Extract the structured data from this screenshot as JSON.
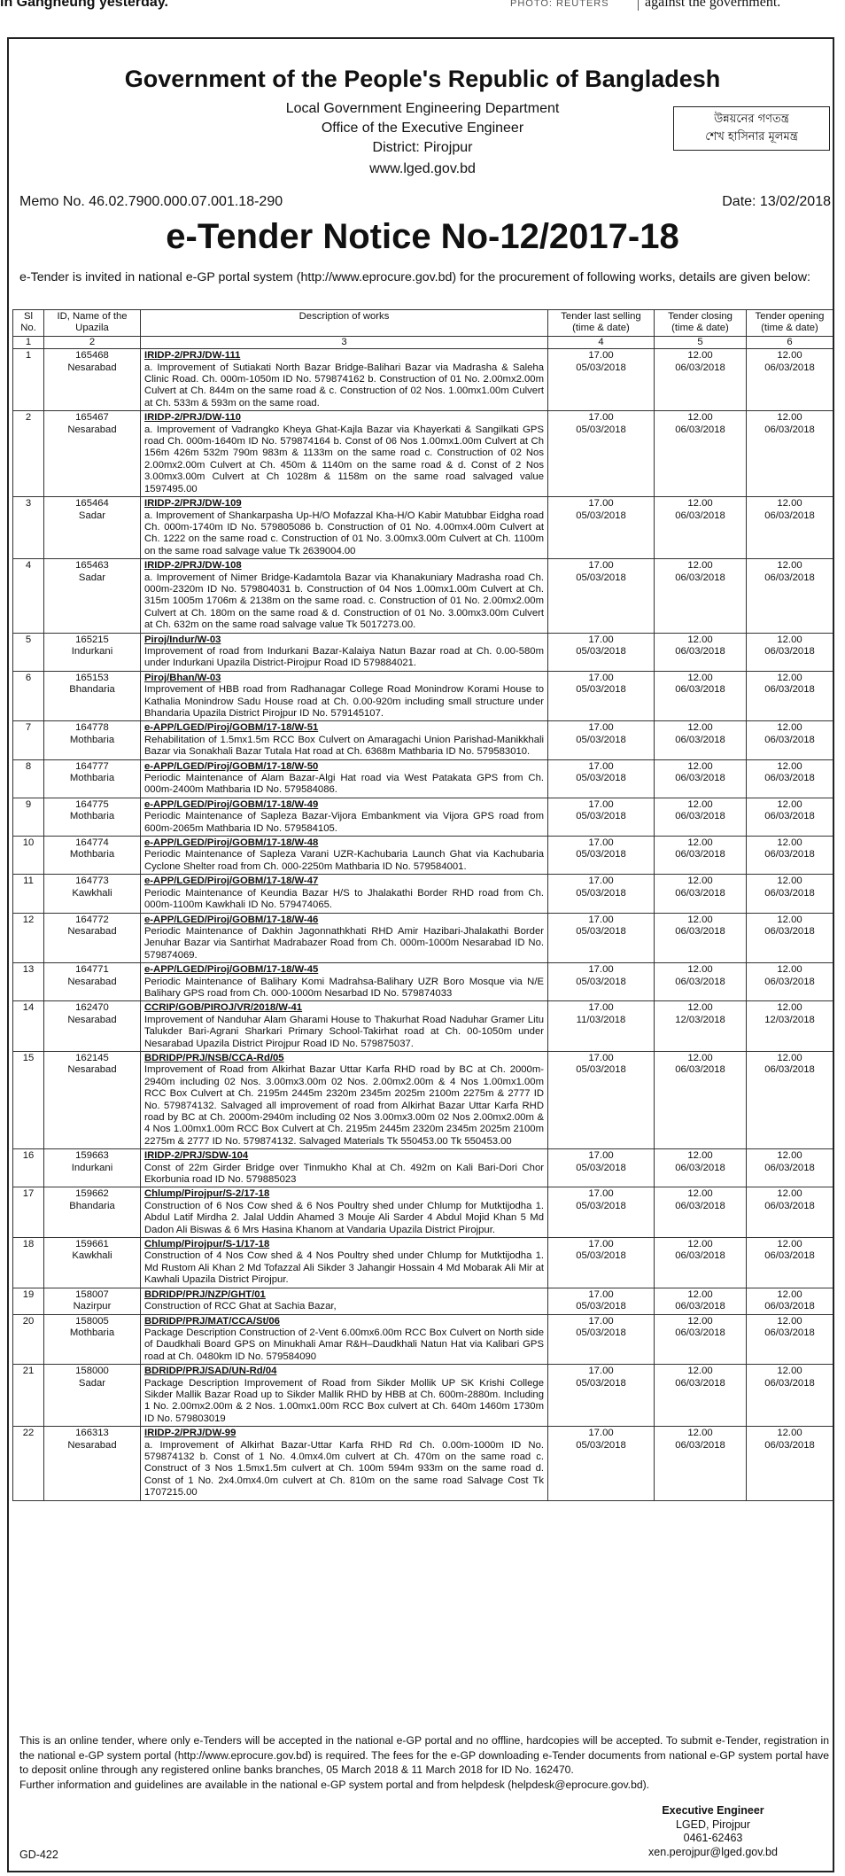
{
  "top_strip": {
    "left": "in Gangneung yesterday.",
    "photo_credit": "PHOTO: REUTERS",
    "right": "against the government."
  },
  "header": {
    "title": "Government of the People's Republic of Bangladesh",
    "lines": [
      "Local Government Engineering Department",
      "Office of the Executive Engineer",
      "District: Pirojpur",
      "www.lged.gov.bd"
    ],
    "slogan": [
      "উন্নয়নের গণতন্ত্র",
      "শেখ হাসিনার মূলমন্ত্র"
    ],
    "memo": "Memo No. 46.02.7900.000.07.001.18-290",
    "date": "Date: 13/02/2018",
    "notice_title": "e-Tender Notice No-12/2017-18",
    "intro": "e-Tender is invited in national e-GP portal system (http://www.eprocure.gov.bd) for the procurement of following works, details are given below:"
  },
  "table": {
    "columns": [
      "Sl No.",
      "ID, Name of the Upazila",
      "Description of works",
      "Tender last selling (time & date)",
      "Tender closing (time & date)",
      "Tender opening (time & date)"
    ],
    "column_numbers": [
      "1",
      "2",
      "3",
      "4",
      "5",
      "6"
    ],
    "rows": [
      {
        "sl": "1",
        "id": "165468",
        "upazila": "Nesarabad",
        "code": "IRIDP-2/PRJ/DW-111",
        "description": "a. Improvement of Sutiakati North Bazar Bridge-Balihari Bazar via Madrasha & Saleha Clinic Road. Ch. 000m-1050m ID No. 579874162 b. Construction of 01 No. 2.00mx2.00m Culvert at Ch. 844m on the same road & c. Construction of 02 Nos. 1.00mx1.00m Culvert at Ch. 533m & 593m on the same road.",
        "selling": [
          "17.00",
          "05/03/2018"
        ],
        "closing": [
          "12.00",
          "06/03/2018"
        ],
        "opening": [
          "12.00",
          "06/03/2018"
        ]
      },
      {
        "sl": "2",
        "id": "165467",
        "upazila": "Nesarabad",
        "code": "IRIDP-2/PRJ/DW-110",
        "description": "a. Improvement of Vadrangko Kheya Ghat-Kajla Bazar via Khayerkati & Sangilkati GPS road Ch. 000m-1640m ID No. 579874164 b. Const of 06 Nos 1.00mx1.00m Culvert at Ch 156m 426m 532m 790m 983m & 1133m on the same road c. Construction of 02 Nos 2.00mx2.00m Culvert at Ch. 450m & 1140m on the same road & d. Const of 2 Nos 3.00mx3.00m Culvert at Ch 1028m & 1158m on the same road salvaged value 1597495.00",
        "selling": [
          "17.00",
          "05/03/2018"
        ],
        "closing": [
          "12.00",
          "06/03/2018"
        ],
        "opening": [
          "12.00",
          "06/03/2018"
        ]
      },
      {
        "sl": "3",
        "id": "165464",
        "upazila": "Sadar",
        "code": "IRIDP-2/PRJ/DW-109",
        "description": "a. Improvement of Shankarpasha Up-H/O Mofazzal Kha-H/O Kabir Matubbar Eidgha road Ch. 000m-1740m ID No. 579805086 b. Construction of 01 No. 4.00mx4.00m Culvert at Ch. 1222 on the same road c. Construction of 01 No. 3.00mx3.00m Culvert at Ch. 1100m on the same road salvage value Tk 2639004.00",
        "selling": [
          "17.00",
          "05/03/2018"
        ],
        "closing": [
          "12.00",
          "06/03/2018"
        ],
        "opening": [
          "12.00",
          "06/03/2018"
        ]
      },
      {
        "sl": "4",
        "id": "165463",
        "upazila": "Sadar",
        "code": "IRIDP-2/PRJ/DW-108",
        "description": "a. Improvement of Nimer Bridge-Kadamtola Bazar via Khanakuniary Madrasha road Ch. 000m-2320m ID No. 579804031 b. Construction of 04 Nos 1.00mx1.00m Culvert at Ch. 315m 1005m 1706m & 2138m on the same road. c. Construction of 01 No. 2.00mx2.00m Culvert at Ch. 180m on the same road & d. Construction of 01 No. 3.00mx3.00m Culvert at Ch. 632m on the same road salvage value Tk 5017273.00.",
        "selling": [
          "17.00",
          "05/03/2018"
        ],
        "closing": [
          "12.00",
          "06/03/2018"
        ],
        "opening": [
          "12.00",
          "06/03/2018"
        ]
      },
      {
        "sl": "5",
        "id": "165215",
        "upazila": "Indurkani",
        "code": "Piroj/Indur/W-03",
        "description": "Improvement of road from Indurkani Bazar-Kalaiya Natun Bazar road at Ch. 0.00-580m under Indurkani Upazila District-Pirojpur Road ID 579884021.",
        "selling": [
          "17.00",
          "05/03/2018"
        ],
        "closing": [
          "12.00",
          "06/03/2018"
        ],
        "opening": [
          "12.00",
          "06/03/2018"
        ]
      },
      {
        "sl": "6",
        "id": "165153",
        "upazila": "Bhandaria",
        "code": "Piroj/Bhan/W-03",
        "description": "Improvement of HBB road from Radhanagar College Road Monindrow Korami House to Kathalia Monindrow Sadu House road at Ch. 0.00-920m including small structure under Bhandaria Upazila District Pirojpur ID No. 579145107.",
        "selling": [
          "17.00",
          "05/03/2018"
        ],
        "closing": [
          "12.00",
          "06/03/2018"
        ],
        "opening": [
          "12.00",
          "06/03/2018"
        ]
      },
      {
        "sl": "7",
        "id": "164778",
        "upazila": "Mothbaria",
        "code": "e-APP/LGED/Piroj/GOBM/17-18/W-51",
        "description": "Rehabilitation of 1.5mx1.5m RCC Box Culvert on Amaragachi Union Parishad-Manikkhali Bazar via Sonakhali Bazar Tutala Hat road at Ch. 6368m Mathbaria ID No. 579583010.",
        "selling": [
          "17.00",
          "05/03/2018"
        ],
        "closing": [
          "12.00",
          "06/03/2018"
        ],
        "opening": [
          "12.00",
          "06/03/2018"
        ]
      },
      {
        "sl": "8",
        "id": "164777",
        "upazila": "Mothbaria",
        "code": "e-APP/LGED/Piroj/GOBM/17-18/W-50",
        "description": "Periodic Maintenance of Alam Bazar-Algi Hat road via West Patakata GPS from Ch. 000m-2400m Mathbaria ID No. 579584086.",
        "selling": [
          "17.00",
          "05/03/2018"
        ],
        "closing": [
          "12.00",
          "06/03/2018"
        ],
        "opening": [
          "12.00",
          "06/03/2018"
        ]
      },
      {
        "sl": "9",
        "id": "164775",
        "upazila": "Mothbaria",
        "code": "e-APP/LGED/Piroj/GOBM/17-18/W-49",
        "description": "Periodic Maintenance of Sapleza Bazar-Vijora Embankment via Vijora GPS road from 600m-2065m Mathbaria ID No. 579584105.",
        "selling": [
          "17.00",
          "05/03/2018"
        ],
        "closing": [
          "12.00",
          "06/03/2018"
        ],
        "opening": [
          "12.00",
          "06/03/2018"
        ]
      },
      {
        "sl": "10",
        "id": "164774",
        "upazila": "Mothbaria",
        "code": "e-APP/LGED/Piroj/GOBM/17-18/W-48",
        "description": "Periodic Maintenance of Sapleza Varani UZR-Kachubaria Launch Ghat via Kachubaria Cyclone Shelter road from Ch. 000-2250m Mathbaria ID No. 579584001.",
        "selling": [
          "17.00",
          "05/03/2018"
        ],
        "closing": [
          "12.00",
          "06/03/2018"
        ],
        "opening": [
          "12.00",
          "06/03/2018"
        ]
      },
      {
        "sl": "11",
        "id": "164773",
        "upazila": "Kawkhali",
        "code": "e-APP/LGED/Piroj/GOBM/17-18/W-47",
        "description": "Periodic Maintenance of Keundia Bazar H/S to Jhalakathi Border RHD road from Ch. 000m-1100m Kawkhali ID No. 579474065.",
        "selling": [
          "17.00",
          "05/03/2018"
        ],
        "closing": [
          "12.00",
          "06/03/2018"
        ],
        "opening": [
          "12.00",
          "06/03/2018"
        ]
      },
      {
        "sl": "12",
        "id": "164772",
        "upazila": "Nesarabad",
        "code": "e-APP/LGED/Piroj/GOBM/17-18/W-46",
        "description": "Periodic Maintenance of Dakhin Jagonnathkhati RHD Amir Hazibari-Jhalakathi Border Jenuhar Bazar via Santirhat Madrabazer Road from Ch. 000m-1000m Nesarabad ID No. 579874069.",
        "selling": [
          "17.00",
          "05/03/2018"
        ],
        "closing": [
          "12.00",
          "06/03/2018"
        ],
        "opening": [
          "12.00",
          "06/03/2018"
        ]
      },
      {
        "sl": "13",
        "id": "164771",
        "upazila": "Nesarabad",
        "code": "e-APP/LGED/Piroj/GOBM/17-18/W-45",
        "description": "Periodic Maintenance of Balihary Komi Madrahsa-Balihary UZR Boro Mosque via N/E Balihary GPS road from Ch. 000-1000m Nesarbad ID No. 579874033",
        "selling": [
          "17.00",
          "05/03/2018"
        ],
        "closing": [
          "12.00",
          "06/03/2018"
        ],
        "opening": [
          "12.00",
          "06/03/2018"
        ]
      },
      {
        "sl": "14",
        "id": "162470",
        "upazila": "Nesarabad",
        "code": "CCRIP/GOB/PIROJ/VR/2018/W-41",
        "description": "Improvement of Nanduhar Alam Gharami House to Thakurhat Road Naduhar Gramer Litu Talukder Bari-Agrani Sharkari Primary School-Takirhat road at Ch. 00-1050m under Nesarabad Upazila District Pirojpur Road ID No. 579875037.",
        "selling": [
          "17.00",
          "11/03/2018"
        ],
        "closing": [
          "12.00",
          "12/03/2018"
        ],
        "opening": [
          "12.00",
          "12/03/2018"
        ]
      },
      {
        "sl": "15",
        "id": "162145",
        "upazila": "Nesarabad",
        "code": "BDRIDP/PRJ/NSB/CCA-Rd/05",
        "description": "Improvement of Road from Alkirhat Bazar Uttar Karfa RHD road by BC at Ch. 2000m-2940m including 02 Nos. 3.00mx3.00m 02 Nos. 2.00mx2.00m & 4 Nos 1.00mx1.00m RCC Box Culvert at Ch. 2195m 2445m 2320m 2345m 2025m 2100m 2275m & 2777 ID No. 579874132. Salvaged all improvement of road from Alkirhat Bazar Uttar Karfa RHD road by BC at Ch. 2000m-2940m including 02 Nos 3.00mx3.00m 02 Nos 2.00mx2.00m & 4 Nos 1.00mx1.00m RCC Box Culvert at Ch. 2195m 2445m 2320m 2345m 2025m 2100m 2275m & 2777 ID No. 579874132. Salvaged Materials Tk 550453.00 Tk 550453.00",
        "selling": [
          "17.00",
          "05/03/2018"
        ],
        "closing": [
          "12.00",
          "06/03/2018"
        ],
        "opening": [
          "12.00",
          "06/03/2018"
        ]
      },
      {
        "sl": "16",
        "id": "159663",
        "upazila": "Indurkani",
        "code": "IRIDP-2/PRJ/SDW-104",
        "description": "Const of 22m Girder Bridge over Tinmukho Khal at Ch. 492m on Kali Bari-Dori Chor Ekorbunia road ID No. 579885023",
        "selling": [
          "17.00",
          "05/03/2018"
        ],
        "closing": [
          "12.00",
          "06/03/2018"
        ],
        "opening": [
          "12.00",
          "06/03/2018"
        ]
      },
      {
        "sl": "17",
        "id": "159662",
        "upazila": "Bhandaria",
        "code": "Chlump/Pirojpur/S-2/17-18",
        "description": "Construction of 6 Nos Cow shed & 6 Nos Poultry shed under Chlump for Mutktijodha 1. Abdul Latif Mirdha 2. Jalal Uddin Ahamed 3 Mouje Ali Sarder 4 Abdul Mojid Khan 5 Md Dadon Ali Biswas & 6 Mrs Hasina Khanom at Vandaria Upazila District Pirojpur.",
        "selling": [
          "17.00",
          "05/03/2018"
        ],
        "closing": [
          "12.00",
          "06/03/2018"
        ],
        "opening": [
          "12.00",
          "06/03/2018"
        ]
      },
      {
        "sl": "18",
        "id": "159661",
        "upazila": "Kawkhali",
        "code": "Chlump/Pirojpur/S-1/17-18",
        "description": "Construction of 4 Nos Cow shed & 4 Nos Poultry shed under Chlump for Mutktijodha 1. Md Rustom Ali Khan 2 Md Tofazzal Ali Sikder 3 Jahangir Hossain 4 Md Mobarak Ali Mir at Kawhali Upazila District Pirojpur.",
        "selling": [
          "17.00",
          "05/03/2018"
        ],
        "closing": [
          "12.00",
          "06/03/2018"
        ],
        "opening": [
          "12.00",
          "06/03/2018"
        ]
      },
      {
        "sl": "19",
        "id": "158007",
        "upazila": "Nazirpur",
        "code": "BDRIDP/PRJ/NZP/GHT/01",
        "description": "Construction of RCC Ghat at Sachia Bazar,",
        "selling": [
          "17.00",
          "05/03/2018"
        ],
        "closing": [
          "12.00",
          "06/03/2018"
        ],
        "opening": [
          "12.00",
          "06/03/2018"
        ]
      },
      {
        "sl": "20",
        "id": "158005",
        "upazila": "Mothbaria",
        "code": "BDRIDP/PRJ/MAT/CCA/St/06",
        "description": "Package Description Construction of 2-Vent 6.00mx6.00m RCC Box Culvert on North side of Daudkhali Board GPS on Minukhali Amar R&H–Daudkhali Natun Hat via Kalibari GPS road at Ch. 0480km ID No. 579584090",
        "selling": [
          "17.00",
          "05/03/2018"
        ],
        "closing": [
          "12.00",
          "06/03/2018"
        ],
        "opening": [
          "12.00",
          "06/03/2018"
        ]
      },
      {
        "sl": "21",
        "id": "158000",
        "upazila": "Sadar",
        "code": "BDRIDP/PRJ/SAD/UN-Rd/04",
        "description": "Package Description Improvement of Road from Sikder Mollik UP SK Krishi College Sikder Mallik Bazar Road up to Sikder Mallik RHD by HBB at Ch. 600m-2880m. Including 1 No. 2.00mx2.00m & 2 Nos. 1.00mx1.00m RCC Box culvert at Ch. 640m 1460m 1730m ID No. 579803019",
        "selling": [
          "17.00",
          "05/03/2018"
        ],
        "closing": [
          "12.00",
          "06/03/2018"
        ],
        "opening": [
          "12.00",
          "06/03/2018"
        ]
      },
      {
        "sl": "22",
        "id": "166313",
        "upazila": "Nesarabad",
        "code": "IRIDP-2/PRJ/DW-99",
        "description": "a. Improvement of Alkirhat Bazar-Uttar Karfa RHD Rd Ch. 0.00m-1000m ID No. 579874132 b. Const of 1 No. 4.0mx4.0m culvert at Ch. 470m on the same road c. Construct of 3 Nos 1.5mx1.5m culvert at Ch. 100m 594m 933m on the same road d. Const of 1 No. 2x4.0mx4.0m culvert at Ch. 810m on the same road Salvage Cost Tk 1707215.00",
        "selling": [
          "17.00",
          "05/03/2018"
        ],
        "closing": [
          "12.00",
          "06/03/2018"
        ],
        "opening": [
          "12.00",
          "06/03/2018"
        ]
      }
    ]
  },
  "footer": {
    "notes": [
      "This is an online tender, where only e-Tenders will be accepted in the national e-GP portal and no offline, hardcopies will be accepted. To submit e-Tender, registration in the national e-GP system portal (http://www.eprocure.gov.bd) is required. The fees for the e-GP downloading e-Tender documents from national e-GP system portal have to deposit online through any registered online banks branches, 05 March 2018 & 11 March 2018 for ID No. 162470.",
      "Further information and guidelines are available in the national e-GP system portal and from helpdesk (helpdesk@eprocure.gov.bd)."
    ],
    "signature": [
      "Executive Engineer",
      "LGED, Pirojpur",
      "0461-62463",
      "xen.perojpur@lged.gov.bd"
    ],
    "code": "GD-422"
  }
}
